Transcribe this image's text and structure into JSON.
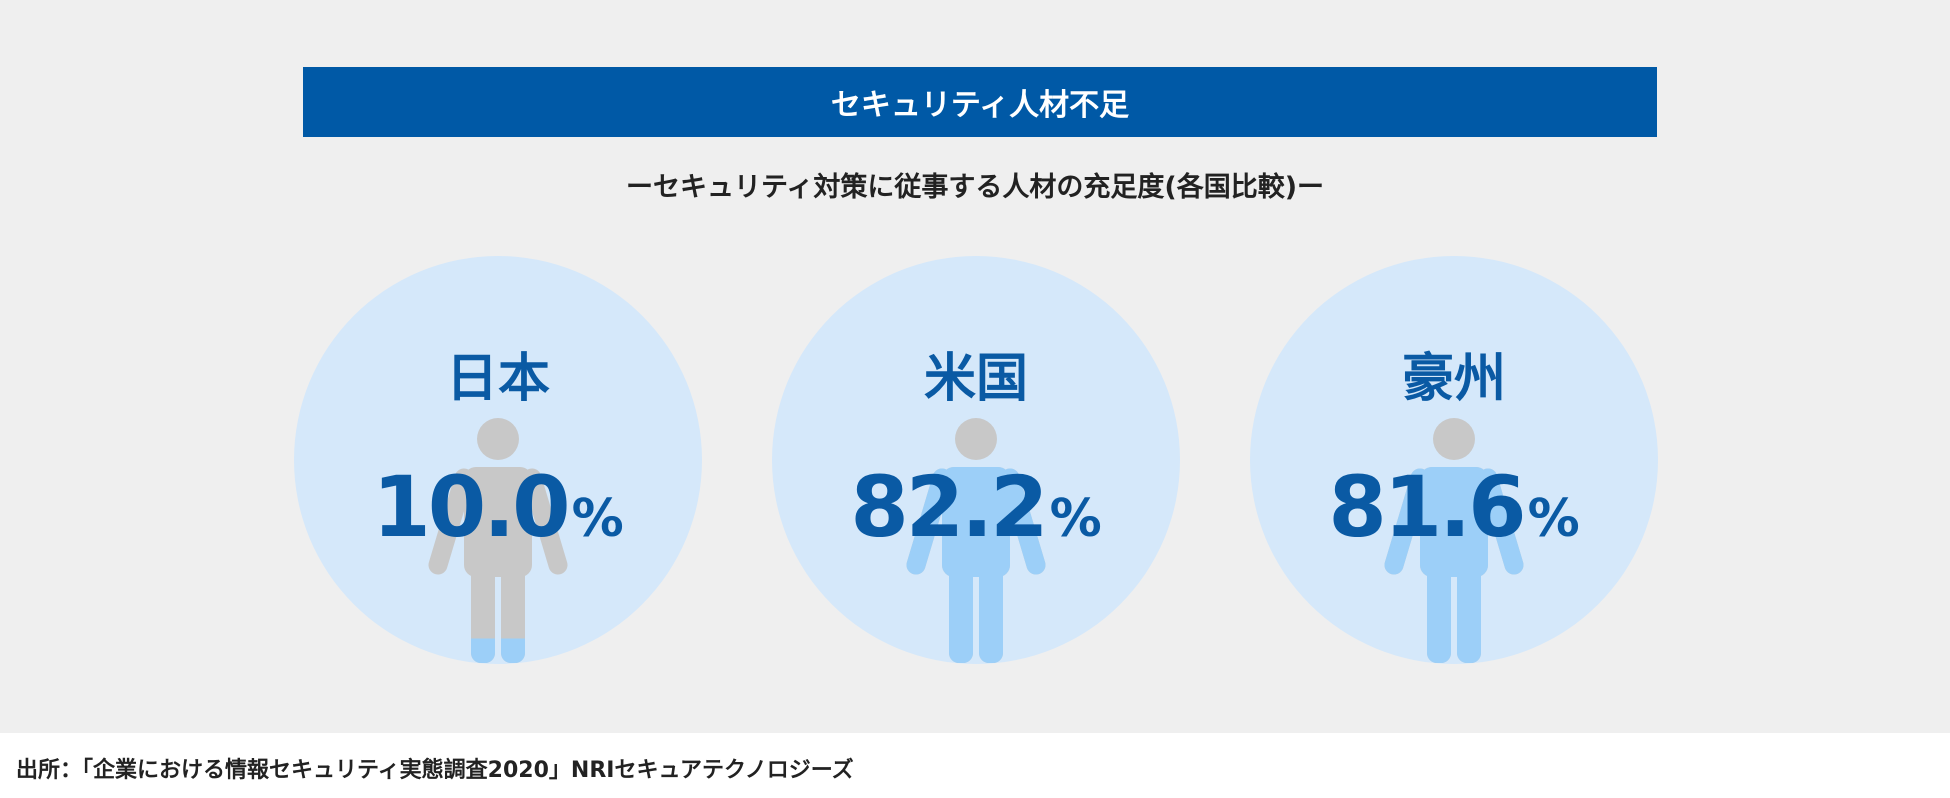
{
  "colors": {
    "title_bg": "#0059a6",
    "circle": "#d5e8fa",
    "person_base": "#c8c8c8",
    "person_fill": "#9ccff8",
    "value_text": "#0a5aa4"
  },
  "icon": "person-icon",
  "chart_data": {
    "type": "pictogram",
    "title": "セキュリティ人材不足",
    "subtitle": "ーセキュリティ対策に従事する人材の充足度(各国比較)ー",
    "unit": "%",
    "categories": [
      "日本",
      "米国",
      "豪州"
    ],
    "values": [
      10.0,
      82.2,
      81.6
    ],
    "value_labels": [
      "10.0",
      "82.2",
      "81.6"
    ]
  },
  "footer": {
    "source": "出所：「企業における情報セキュリティ実態調査2020」NRIセキュアテクノロジーズ"
  }
}
